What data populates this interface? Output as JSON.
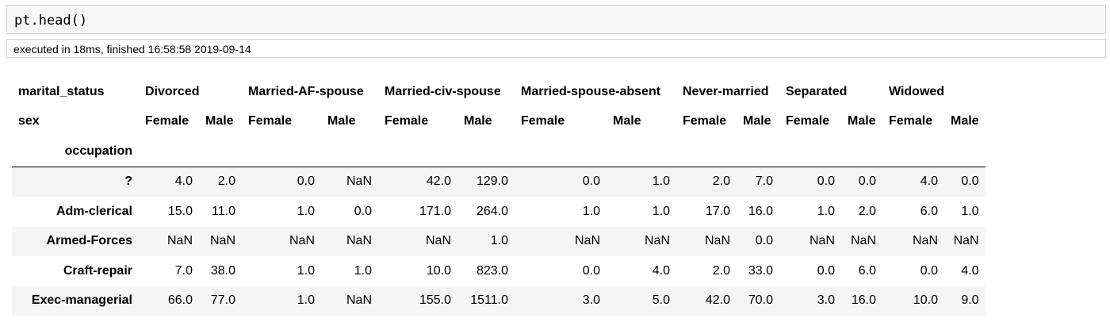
{
  "cell": {
    "code": "pt.head()",
    "exec_info": "executed in 18ms, finished 16:58:58 2019-09-14"
  },
  "table": {
    "level0_name": "marital_status",
    "level1_name": "sex",
    "index_name": "occupation",
    "statuses": [
      "Divorced",
      "Married-AF-spouse",
      "Married-civ-spouse",
      "Married-spouse-absent",
      "Never-married",
      "Separated",
      "Widowed"
    ],
    "sexes": [
      "Female",
      "Male"
    ],
    "rows": [
      {
        "label": "?",
        "values": [
          "4.0",
          "2.0",
          "0.0",
          "NaN",
          "42.0",
          "129.0",
          "0.0",
          "1.0",
          "2.0",
          "7.0",
          "0.0",
          "0.0",
          "4.0",
          "0.0"
        ]
      },
      {
        "label": "Adm-clerical",
        "values": [
          "15.0",
          "11.0",
          "1.0",
          "0.0",
          "171.0",
          "264.0",
          "1.0",
          "1.0",
          "17.0",
          "16.0",
          "1.0",
          "2.0",
          "6.0",
          "1.0"
        ]
      },
      {
        "label": "Armed-Forces",
        "values": [
          "NaN",
          "NaN",
          "NaN",
          "NaN",
          "NaN",
          "1.0",
          "NaN",
          "NaN",
          "NaN",
          "0.0",
          "NaN",
          "NaN",
          "NaN",
          "NaN"
        ]
      },
      {
        "label": "Craft-repair",
        "values": [
          "7.0",
          "38.0",
          "1.0",
          "1.0",
          "10.0",
          "823.0",
          "0.0",
          "4.0",
          "2.0",
          "33.0",
          "0.0",
          "6.0",
          "0.0",
          "4.0"
        ]
      },
      {
        "label": "Exec-managerial",
        "values": [
          "66.0",
          "77.0",
          "1.0",
          "NaN",
          "155.0",
          "1511.0",
          "3.0",
          "5.0",
          "42.0",
          "70.0",
          "3.0",
          "16.0",
          "10.0",
          "9.0"
        ]
      }
    ]
  }
}
